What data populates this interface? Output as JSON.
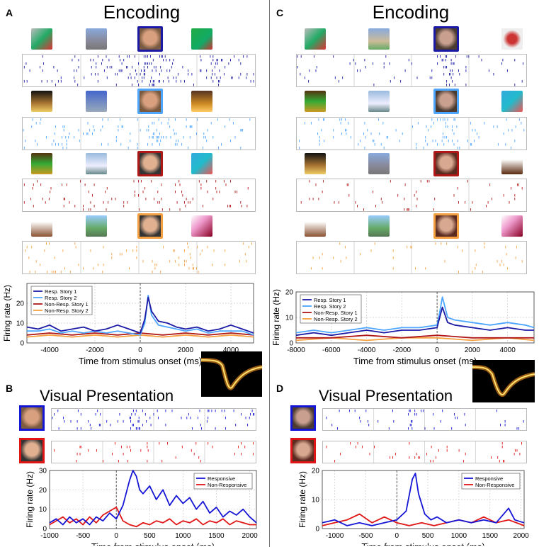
{
  "panels": {
    "A": {
      "letter": "A",
      "title": "Encoding"
    },
    "B": {
      "letter": "B",
      "title": "Visual Presentation"
    },
    "C": {
      "letter": "C",
      "title": "Encoding"
    },
    "D": {
      "letter": "D",
      "title": "Visual Presentation"
    }
  },
  "colors": {
    "resp1": "#1a1aa6",
    "resp2": "#4da6ff",
    "nonresp1": "#b01818",
    "nonresp2": "#f5a040",
    "responsive": "#1515d6",
    "nonresponsive": "#e01515"
  },
  "chart_data": [
    {
      "id": "A-psth",
      "type": "line",
      "xlabel": "Time from stimulus onset (ms)",
      "ylabel": "Firing rate (Hz)",
      "xlim": [
        -5000,
        5000
      ],
      "ylim": [
        0,
        30
      ],
      "xticks": [
        -4000,
        -2000,
        0,
        2000,
        4000
      ],
      "yticks": [
        0,
        10,
        20
      ],
      "legend_position": "top-left",
      "series": [
        {
          "name": "Resp. Story 1",
          "x": [
            -5000,
            -4500,
            -4000,
            -3500,
            -3000,
            -2500,
            -2000,
            -1500,
            -1000,
            -500,
            0,
            200,
            350,
            500,
            800,
            1200,
            1600,
            2000,
            2500,
            3000,
            3500,
            4000,
            4500,
            5000
          ],
          "values": [
            8,
            7,
            9,
            6,
            7,
            8,
            6,
            7,
            9,
            7,
            5,
            12,
            23,
            16,
            11,
            10,
            8,
            7,
            8,
            6,
            7,
            9,
            7,
            5
          ]
        },
        {
          "name": "Resp. Story 2",
          "x": [
            -5000,
            -4500,
            -4000,
            -3500,
            -3000,
            -2500,
            -2000,
            -1500,
            -1000,
            -500,
            0,
            200,
            350,
            500,
            800,
            1200,
            1600,
            2000,
            2500,
            3000,
            3500,
            4000,
            4500,
            5000
          ],
          "values": [
            6,
            6,
            7,
            5,
            6,
            5,
            6,
            5,
            6,
            5,
            4,
            10,
            24,
            14,
            9,
            8,
            7,
            6,
            7,
            5,
            6,
            6,
            6,
            4
          ]
        },
        {
          "name": "Non-Resp. Story 1",
          "x": [
            -5000,
            -4000,
            -3000,
            -2000,
            -1000,
            0,
            1000,
            2000,
            3000,
            4000,
            5000
          ],
          "values": [
            4,
            5,
            4,
            5,
            4,
            5,
            4,
            5,
            4,
            5,
            4
          ]
        },
        {
          "name": "Non-Resp. Story 2",
          "x": [
            -5000,
            -4000,
            -3000,
            -2000,
            -1000,
            0,
            1000,
            2000,
            3000,
            4000,
            5000
          ],
          "values": [
            3,
            4,
            3,
            4,
            3,
            4,
            3,
            4,
            3,
            4,
            3
          ]
        }
      ]
    },
    {
      "id": "C-psth",
      "type": "line",
      "xlabel": "Time from stimulus onset (ms)",
      "ylabel": "Firing rate (Hz)",
      "xlim": [
        -8000,
        5500
      ],
      "ylim": [
        0,
        20
      ],
      "xticks": [
        -8000,
        -6000,
        -4000,
        -2000,
        0,
        2000,
        4000
      ],
      "yticks": [
        0,
        10,
        20
      ],
      "legend_position": "top-left",
      "series": [
        {
          "name": "Resp. Story 1",
          "x": [
            -8000,
            -7000,
            -6000,
            -5000,
            -4000,
            -3000,
            -2000,
            -1000,
            0,
            150,
            300,
            600,
            1000,
            2000,
            3000,
            4000,
            5000,
            5500
          ],
          "values": [
            3,
            4,
            3,
            4,
            5,
            4,
            5,
            5,
            6,
            10,
            14,
            8,
            7,
            6,
            5,
            6,
            5,
            5
          ]
        },
        {
          "name": "Resp. Story 2",
          "x": [
            -8000,
            -7000,
            -6000,
            -5000,
            -4000,
            -3000,
            -2000,
            -1000,
            0,
            150,
            300,
            600,
            1000,
            2000,
            3000,
            4000,
            5000,
            5500
          ],
          "values": [
            4,
            5,
            4,
            5,
            6,
            5,
            6,
            6,
            7,
            12,
            18,
            10,
            9,
            8,
            7,
            8,
            7,
            6
          ]
        },
        {
          "name": "Non-Resp. Story 1",
          "x": [
            -8000,
            -6000,
            -4000,
            -2000,
            0,
            2000,
            4000,
            5500
          ],
          "values": [
            2,
            2,
            3,
            2,
            3,
            2,
            2,
            2
          ]
        },
        {
          "name": "Non-Resp. Story 2",
          "x": [
            -8000,
            -6000,
            -4000,
            -2000,
            0,
            2000,
            4000,
            5500
          ],
          "values": [
            1,
            2,
            1,
            2,
            2,
            1,
            2,
            1
          ]
        }
      ]
    },
    {
      "id": "B-psth",
      "type": "line",
      "xlabel": "Time from stimulus onset (ms)",
      "ylabel": "Firing rate (Hz)",
      "xlim": [
        -1000,
        2100
      ],
      "ylim": [
        0,
        30
      ],
      "xticks": [
        -1000,
        -500,
        0,
        500,
        1000,
        1500,
        2000
      ],
      "yticks": [
        0,
        10,
        20,
        30
      ],
      "legend_position": "top-right",
      "series": [
        {
          "name": "Responsive",
          "x": [
            -1000,
            -900,
            -800,
            -700,
            -600,
            -500,
            -400,
            -300,
            -200,
            -100,
            0,
            100,
            200,
            250,
            300,
            350,
            400,
            500,
            600,
            700,
            800,
            900,
            1000,
            1100,
            1200,
            1300,
            1400,
            1500,
            1600,
            1700,
            1800,
            1900,
            2000,
            2100
          ],
          "values": [
            3,
            5,
            2,
            6,
            3,
            5,
            2,
            6,
            4,
            8,
            5,
            12,
            25,
            30,
            27,
            20,
            18,
            22,
            15,
            20,
            12,
            17,
            13,
            16,
            10,
            14,
            8,
            11,
            6,
            9,
            7,
            10,
            6,
            3
          ]
        },
        {
          "name": "Non-Responsive",
          "x": [
            -1000,
            -900,
            -800,
            -700,
            -600,
            -500,
            -400,
            -300,
            -200,
            -100,
            0,
            100,
            200,
            300,
            400,
            500,
            600,
            700,
            800,
            900,
            1000,
            1100,
            1200,
            1300,
            1400,
            1500,
            1600,
            1700,
            1800,
            1900,
            2000,
            2100
          ],
          "values": [
            2,
            4,
            6,
            3,
            5,
            2,
            6,
            3,
            7,
            9,
            11,
            4,
            2,
            1,
            3,
            2,
            4,
            3,
            5,
            2,
            4,
            3,
            5,
            2,
            4,
            3,
            5,
            2,
            4,
            3,
            2,
            2
          ]
        }
      ]
    },
    {
      "id": "D-psth",
      "type": "line",
      "xlabel": "Time from stimulus onset (ms)",
      "ylabel": "Firing rate (Hz)",
      "xlim": [
        -1200,
        2050
      ],
      "ylim": [
        0,
        20
      ],
      "xticks": [
        -1000,
        -500,
        0,
        500,
        1000,
        1500,
        2000
      ],
      "yticks": [
        0,
        10,
        20
      ],
      "legend_position": "top-right",
      "series": [
        {
          "name": "Responsive",
          "x": [
            -1200,
            -1000,
            -800,
            -600,
            -400,
            -200,
            0,
            150,
            250,
            300,
            350,
            450,
            550,
            650,
            800,
            1000,
            1200,
            1400,
            1600,
            1800,
            1900,
            2050
          ],
          "values": [
            2,
            3,
            1,
            2,
            1,
            2,
            3,
            6,
            17,
            19,
            12,
            5,
            3,
            4,
            2,
            3,
            2,
            3,
            2,
            7,
            3,
            2
          ]
        },
        {
          "name": "Non-Responsive",
          "x": [
            -1200,
            -1000,
            -800,
            -600,
            -400,
            -200,
            0,
            200,
            400,
            600,
            800,
            1000,
            1200,
            1400,
            1600,
            1800,
            2050
          ],
          "values": [
            1,
            2,
            3,
            5,
            2,
            4,
            2,
            1,
            2,
            1,
            2,
            3,
            2,
            4,
            2,
            3,
            1
          ]
        }
      ]
    }
  ]
}
